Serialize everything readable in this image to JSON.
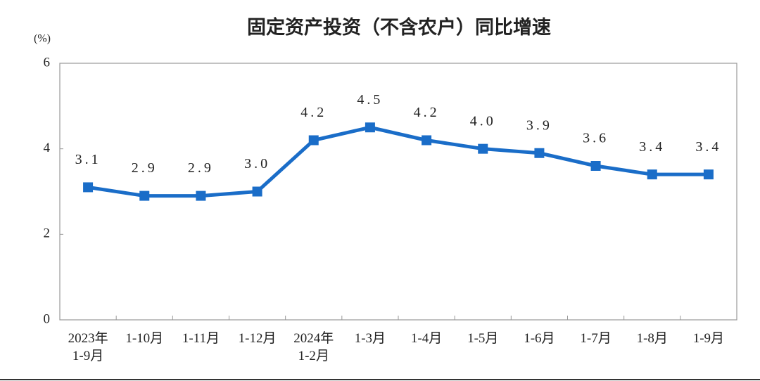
{
  "chart_data": {
    "type": "line",
    "title": "固定资产投资（不含农户）同比增速",
    "y_label": "(%)",
    "categories": [
      "2023年\n1-9月",
      "1-10月",
      "1-11月",
      "1-12月",
      "2024年\n1-2月",
      "1-3月",
      "1-4月",
      "1-5月",
      "1-6月",
      "1-7月",
      "1-8月",
      "1-9月"
    ],
    "values": [
      3.1,
      2.9,
      2.9,
      3.0,
      4.2,
      4.5,
      4.2,
      4.0,
      3.9,
      3.6,
      3.4,
      3.4
    ],
    "value_labels": [
      "3.1",
      "2.9",
      "2.9",
      "3.0",
      "4.2",
      "4.5",
      "4.2",
      "4.0",
      "3.9",
      "3.6",
      "3.4",
      "3.4"
    ],
    "color": "#1a6dc8",
    "ylim": [
      0,
      6
    ],
    "yticks": [
      0,
      2,
      4,
      6
    ],
    "grid": false
  }
}
